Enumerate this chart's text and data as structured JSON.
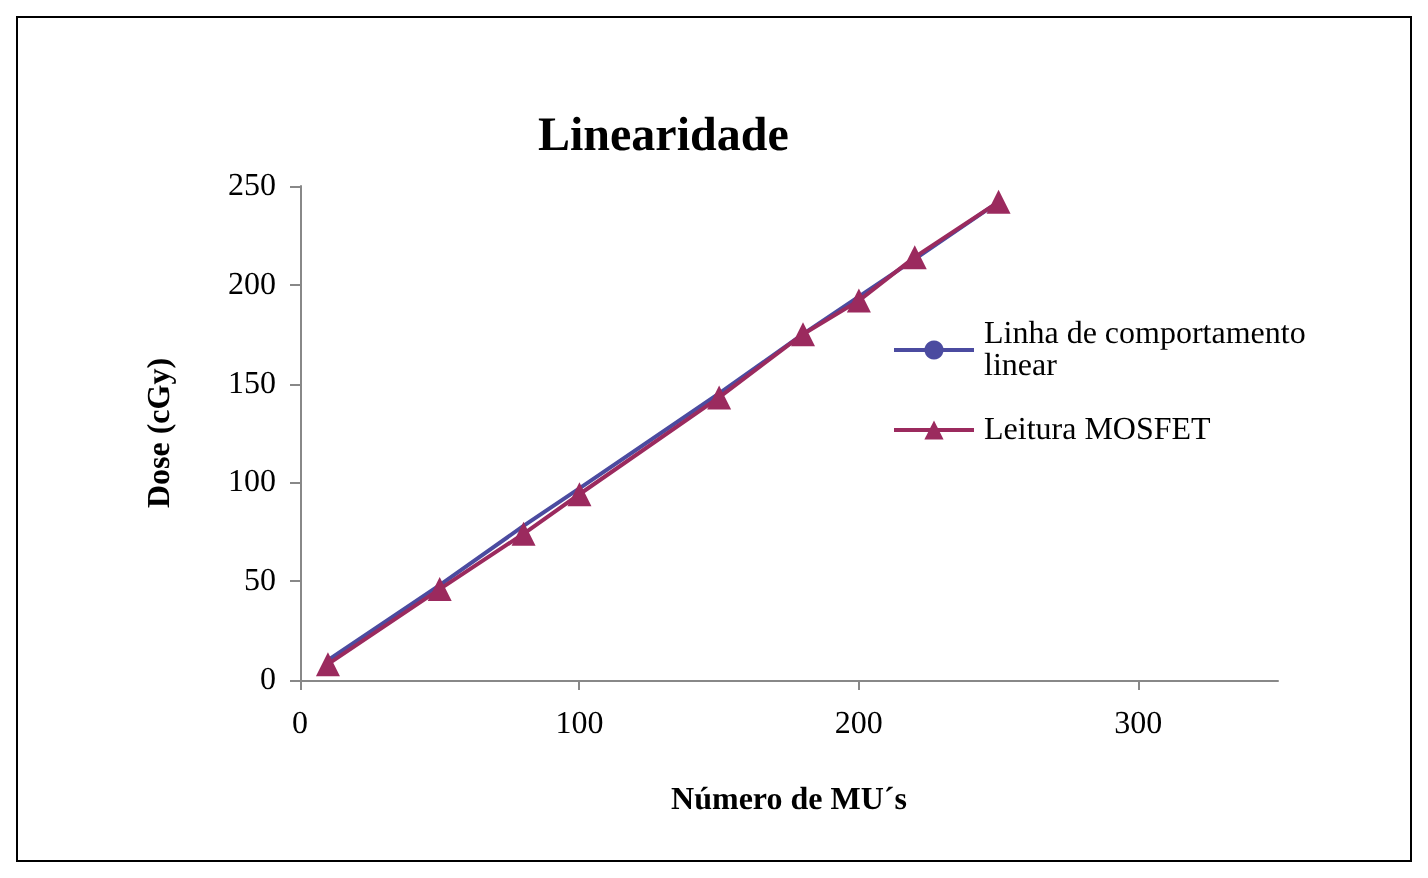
{
  "chart_data": {
    "type": "line",
    "title": "Linearidade",
    "xlabel": "Número de MU´s",
    "ylabel": "Dose (cGy)",
    "xlim": [
      0,
      350
    ],
    "xticks": [
      0,
      100,
      200,
      300
    ],
    "ylim": [
      0,
      250
    ],
    "yticks": [
      0,
      50,
      100,
      150,
      200,
      250
    ],
    "grid": false,
    "legend": "right",
    "series": [
      {
        "name": "Linha de comportamento linear",
        "color": "#4b4ba0",
        "marker": "none",
        "x": [
          10,
          50,
          80,
          100,
          150,
          180,
          200,
          220,
          250
        ],
        "values": [
          10,
          48,
          78,
          97,
          145,
          175,
          194,
          213,
          242
        ]
      },
      {
        "name": "Leitura MOSFET",
        "color": "#9b2a5e",
        "marker": "triangle",
        "x": [
          10,
          50,
          80,
          100,
          150,
          180,
          200,
          220,
          250
        ],
        "values": [
          8,
          46,
          74,
          94,
          143,
          175,
          192,
          214,
          242
        ]
      }
    ]
  }
}
